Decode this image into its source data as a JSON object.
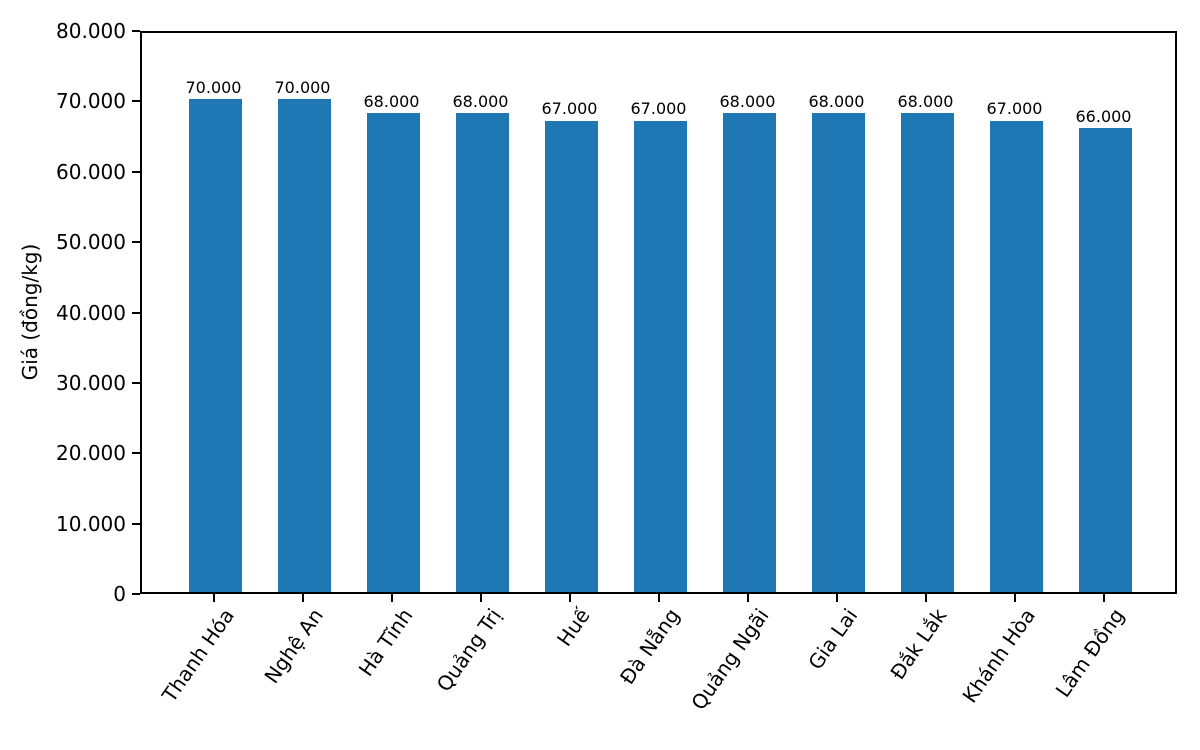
{
  "chart_data": {
    "type": "bar",
    "title": "",
    "xlabel": "",
    "ylabel": "Giá (đồng/kg)",
    "categories": [
      "Thanh Hóa",
      "Nghệ An",
      "Hà Tĩnh",
      "Quảng Trị",
      "Huế",
      "Đà Nẵng",
      "Quảng Ngãi",
      "Gia Lai",
      "Đắk Lắk",
      "Khánh Hòa",
      "Lâm Đồng"
    ],
    "values": [
      70000,
      70000,
      68000,
      68000,
      67000,
      67000,
      68000,
      68000,
      68000,
      67000,
      66000
    ],
    "bar_labels": [
      "70.000",
      "70.000",
      "68.000",
      "68.000",
      "67.000",
      "67.000",
      "68.000",
      "68.000",
      "68.000",
      "67.000",
      "66.000"
    ],
    "ylim": [
      0,
      80000
    ],
    "yticks": [
      0,
      10000,
      20000,
      30000,
      40000,
      50000,
      60000,
      70000,
      80000
    ],
    "ytick_labels": [
      "0",
      "10.000",
      "20.000",
      "30.000",
      "40.000",
      "50.000",
      "60.000",
      "70.000",
      "80.000"
    ],
    "bar_color": "#1f77b4",
    "grid": false,
    "legend": null
  }
}
